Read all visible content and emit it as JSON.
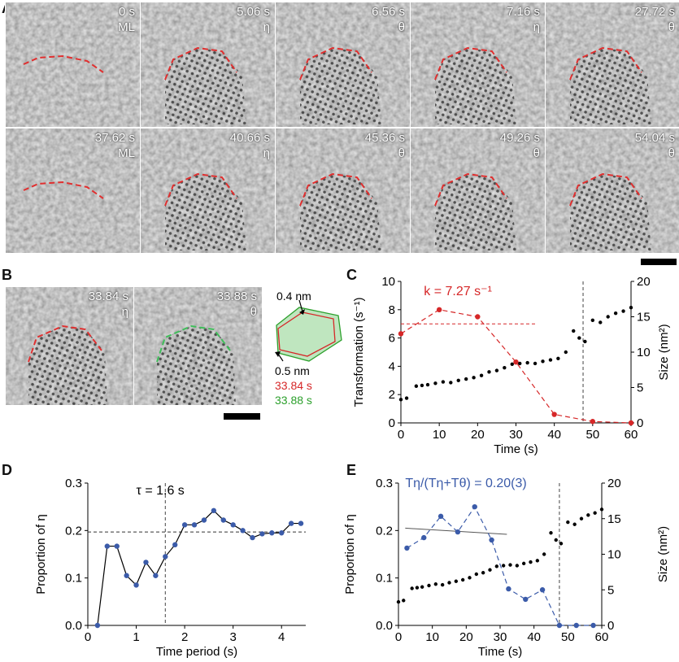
{
  "panel_letters": {
    "a": "A",
    "b": "B",
    "c": "C",
    "d": "D",
    "e": "E"
  },
  "panel_a": {
    "frames": [
      {
        "time": "0 s",
        "phase": "ML"
      },
      {
        "time": "5.06 s",
        "phase": "η"
      },
      {
        "time": "6.56 s",
        "phase": "θ"
      },
      {
        "time": "7.16 s",
        "phase": "η"
      },
      {
        "time": "27.72 s",
        "phase": "θ"
      },
      {
        "time": "37.62 s",
        "phase": "ML"
      },
      {
        "time": "40.66 s",
        "phase": "η"
      },
      {
        "time": "45.36 s",
        "phase": "θ"
      },
      {
        "time": "49.26 s",
        "phase": "θ"
      },
      {
        "time": "54.04 s",
        "phase": "θ"
      }
    ]
  },
  "panel_b": {
    "frames": [
      {
        "time": "33.84 s",
        "phase": "η"
      },
      {
        "time": "33.88 s",
        "phase": "θ"
      }
    ],
    "inset": {
      "top_label": "0.4 nm",
      "bottom_label": "0.5 nm",
      "red_label": "33.84 s",
      "green_label": "33.88 s",
      "red_color": "#d62728",
      "green_color": "#2ca02c"
    }
  },
  "chart_data": [
    {
      "id": "C",
      "type": "line",
      "annotation": "k = 7.27 s⁻¹",
      "xlabel": "Time (s)",
      "ylabel": "Transformation (s⁻¹)",
      "y2label": "Size (nm²)",
      "xlim": [
        0,
        60
      ],
      "ylim": [
        0,
        10
      ],
      "y2lim": [
        0,
        20
      ],
      "xticks": [
        0,
        10,
        20,
        30,
        40,
        50,
        60
      ],
      "yticks": [
        0,
        2,
        4,
        6,
        8,
        10
      ],
      "y2ticks": [
        0,
        5,
        10,
        15,
        20
      ],
      "vline": 47.5,
      "hline": 7.0,
      "series": [
        {
          "axis": "left",
          "style": "dashed-line",
          "color": "#d62728",
          "x": [
            0,
            10,
            20,
            30,
            40,
            50,
            60
          ],
          "y": [
            6.3,
            8.0,
            7.5,
            4.3,
            0.6,
            0.1,
            0.0
          ]
        },
        {
          "axis": "right",
          "style": "dots",
          "color": "#000000",
          "x": [
            0,
            1.5,
            4,
            5.5,
            7,
            9,
            11,
            13,
            15,
            17,
            19,
            21,
            23,
            25,
            27,
            29,
            31,
            33,
            35,
            37,
            39,
            41,
            43,
            45,
            46.5,
            48,
            50,
            52,
            54,
            56,
            58,
            60
          ],
          "y": [
            3.3,
            3.5,
            5.2,
            5.3,
            5.4,
            5.6,
            5.8,
            5.7,
            6.0,
            6.2,
            6.4,
            6.7,
            7.2,
            7.4,
            7.8,
            8.3,
            8.4,
            8.5,
            8.4,
            8.7,
            8.9,
            9.1,
            10.0,
            13.0,
            12.0,
            11.5,
            14.5,
            14.2,
            15.0,
            15.5,
            15.8,
            16.3
          ]
        }
      ]
    },
    {
      "id": "D",
      "type": "line",
      "annotation": "τ = 1.6 s",
      "xlabel": "Time period (s)",
      "ylabel": "Proportion of η",
      "xlim": [
        0,
        4.5
      ],
      "ylim": [
        0,
        0.3
      ],
      "xticks": [
        0,
        1,
        2,
        3,
        4
      ],
      "yticks": [
        "0.0",
        "0.1",
        "0.2",
        "0.3"
      ],
      "vline": 1.6,
      "hline": 0.197,
      "series": [
        {
          "color": "#3b5ba9",
          "x": [
            0.2,
            0.4,
            0.6,
            0.8,
            1.0,
            1.2,
            1.4,
            1.6,
            1.8,
            2.0,
            2.2,
            2.4,
            2.6,
            2.8,
            3.0,
            3.2,
            3.4,
            3.6,
            3.8,
            4.0,
            4.2,
            4.4
          ],
          "y": [
            0.0,
            0.167,
            0.167,
            0.105,
            0.085,
            0.133,
            0.105,
            0.145,
            0.17,
            0.212,
            0.212,
            0.222,
            0.242,
            0.222,
            0.212,
            0.2,
            0.185,
            0.193,
            0.195,
            0.195,
            0.215,
            0.215
          ]
        }
      ]
    },
    {
      "id": "E",
      "type": "line",
      "annotation": "Tη/(Tη+Tθ) = 0.20(3)",
      "xlabel": "Time (s)",
      "ylabel": "Proportion of η",
      "y2label": "Size (nm²)",
      "xlim": [
        0,
        60
      ],
      "ylim": [
        0,
        0.3
      ],
      "y2lim": [
        0,
        20
      ],
      "xticks": [
        0,
        10,
        20,
        30,
        40,
        50,
        60
      ],
      "yticks": [
        "0.0",
        "0.1",
        "0.2",
        "0.3"
      ],
      "y2ticks": [
        0,
        5,
        10,
        15,
        20
      ],
      "vline": 47.5,
      "trend": {
        "x": [
          2,
          32
        ],
        "y": [
          0.205,
          0.192
        ]
      },
      "series": [
        {
          "axis": "left",
          "style": "dashed-line",
          "color": "#3b5ba9",
          "x": [
            2.5,
            7.5,
            12.5,
            17.5,
            22.5,
            27.5,
            32.5,
            37.5,
            42.5,
            47.5,
            52.5,
            57.5
          ],
          "y": [
            0.163,
            0.185,
            0.23,
            0.197,
            0.25,
            0.18,
            0.077,
            0.055,
            0.075,
            0.0,
            0.0,
            0.0
          ]
        },
        {
          "axis": "right",
          "style": "dots",
          "color": "#000000",
          "x": [
            0,
            1.5,
            4,
            5.5,
            7,
            9,
            11,
            13,
            15,
            17,
            19,
            21,
            23,
            25,
            27,
            29,
            31,
            33,
            35,
            37,
            39,
            41,
            43,
            45,
            46.5,
            48,
            50,
            52,
            54,
            56,
            58,
            60
          ],
          "y": [
            3.3,
            3.5,
            5.2,
            5.3,
            5.4,
            5.6,
            5.8,
            5.7,
            6.0,
            6.2,
            6.4,
            6.7,
            7.2,
            7.4,
            7.8,
            8.3,
            8.4,
            8.5,
            8.4,
            8.7,
            8.9,
            9.1,
            10.0,
            13.0,
            12.0,
            11.5,
            14.5,
            14.2,
            15.0,
            15.5,
            15.8,
            16.3
          ]
        }
      ]
    }
  ]
}
